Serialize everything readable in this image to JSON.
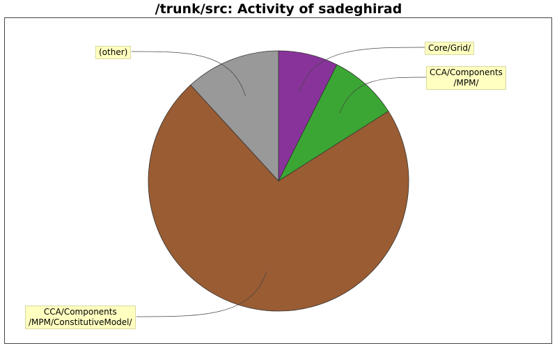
{
  "chart_data": {
    "type": "pie",
    "title": "/trunk/src: Activity of sadeghirad",
    "slices": [
      {
        "label": "Core/Grid/",
        "value": 7.4,
        "color": "#88339a"
      },
      {
        "label": "CCA/Components\n/MPM/",
        "value": 8.6,
        "color": "#3ba633"
      },
      {
        "label": "CCA/Components\n/MPM/ConstitutiveModel/",
        "value": 72.2,
        "color": "#995c33"
      },
      {
        "label": "(other)",
        "value": 11.8,
        "color": "#999999"
      }
    ],
    "start_angle_deg": 90,
    "direction": "clockwise",
    "legend": "none"
  }
}
